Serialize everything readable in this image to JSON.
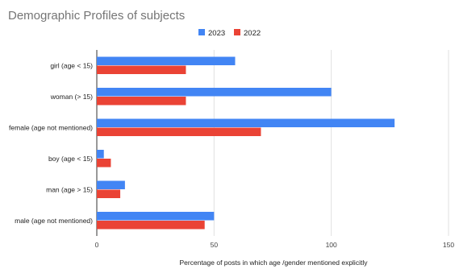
{
  "chart_data": {
    "type": "bar",
    "orientation": "horizontal",
    "title": "Demographic Profiles of subjects",
    "xlabel": "Percentage of posts in which age /gender mentioned explicitly",
    "ylabel": "",
    "categories": [
      "girl (age < 15)",
      "woman (> 15)",
      "female (age not mentioned)",
      "boy (age < 15)",
      "man (age > 15)",
      "male (age not mentioned)"
    ],
    "series": [
      {
        "name": "2023",
        "color": "#4285f4",
        "values": [
          59,
          100,
          127,
          3,
          12,
          50
        ]
      },
      {
        "name": "2022",
        "color": "#ea4335",
        "values": [
          38,
          38,
          70,
          6,
          10,
          46
        ]
      }
    ],
    "xlim": [
      0,
      150
    ],
    "xticks": [
      "0",
      "50",
      "100",
      "150"
    ],
    "grid": true,
    "legend_position": "top-center"
  }
}
